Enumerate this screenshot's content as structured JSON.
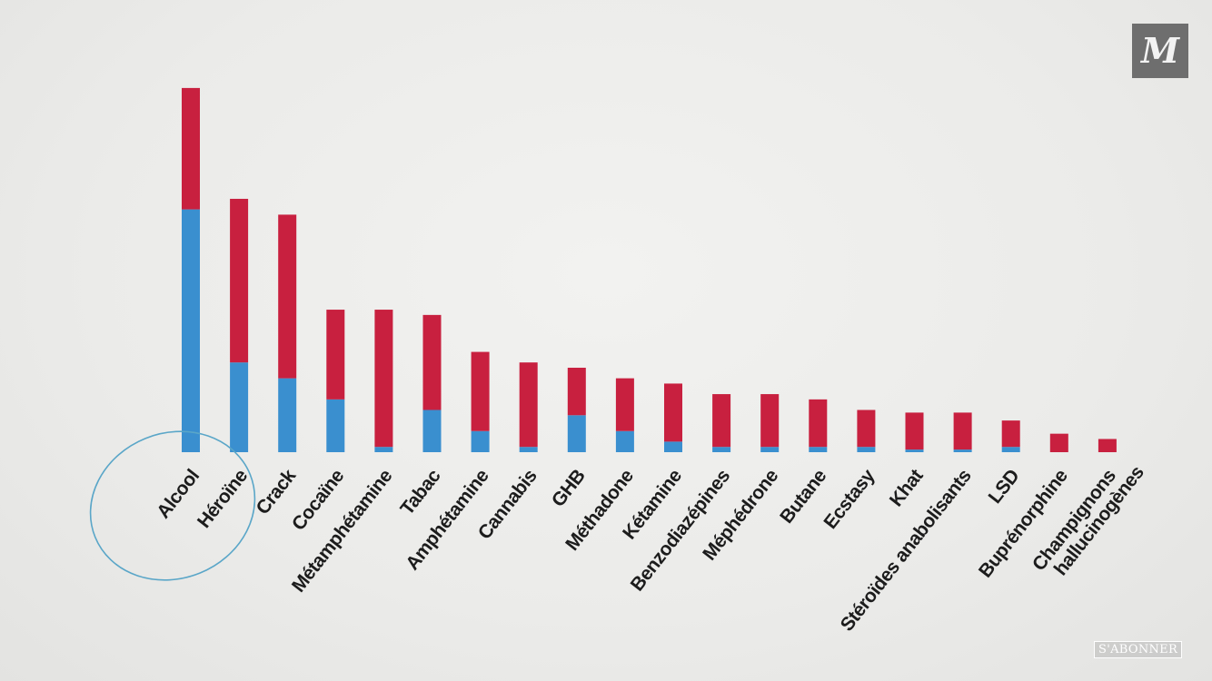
{
  "brand": {
    "logo_text": "M",
    "subscribe_label": "S'ABONNER"
  },
  "colors": {
    "harm_to_others": "#c8203f",
    "harm_to_users": "#3a8fcf",
    "circle": "#5aa6c8",
    "label": "#1c1c1c"
  },
  "chart_data": {
    "type": "bar",
    "stacked": true,
    "title": "",
    "xlabel": "",
    "ylabel": "",
    "ylim": [
      0,
      72
    ],
    "grid": false,
    "legend": "none",
    "categories": [
      "Alcool",
      "Héroïne",
      "Crack",
      "Cocaïne",
      "Métamphétamine",
      "Tabac",
      "Amphétamine",
      "Cannabis",
      "GHB",
      "Méthadone",
      "Kétamine",
      "Benzodiazépines",
      "Méphédrone",
      "Butane",
      "Ecstasy",
      "Khat",
      "Stéroïdes anabolisants",
      "LSD",
      "Buprénorphine",
      "Champignons hallucinogènes"
    ],
    "series": [
      {
        "color": "#3a8fcf",
        "values": [
          46,
          17,
          14,
          10,
          1,
          8,
          4,
          1,
          7,
          4,
          2,
          1,
          1,
          1,
          1,
          0.5,
          0.5,
          1,
          0,
          0
        ]
      },
      {
        "color": "#c8203f",
        "values": [
          23,
          31,
          31,
          17,
          26,
          18,
          15,
          16,
          9,
          10,
          11,
          10,
          10,
          9,
          7,
          7,
          7,
          5,
          3.5,
          2.5
        ]
      }
    ],
    "highlighted_category": "Alcool"
  }
}
